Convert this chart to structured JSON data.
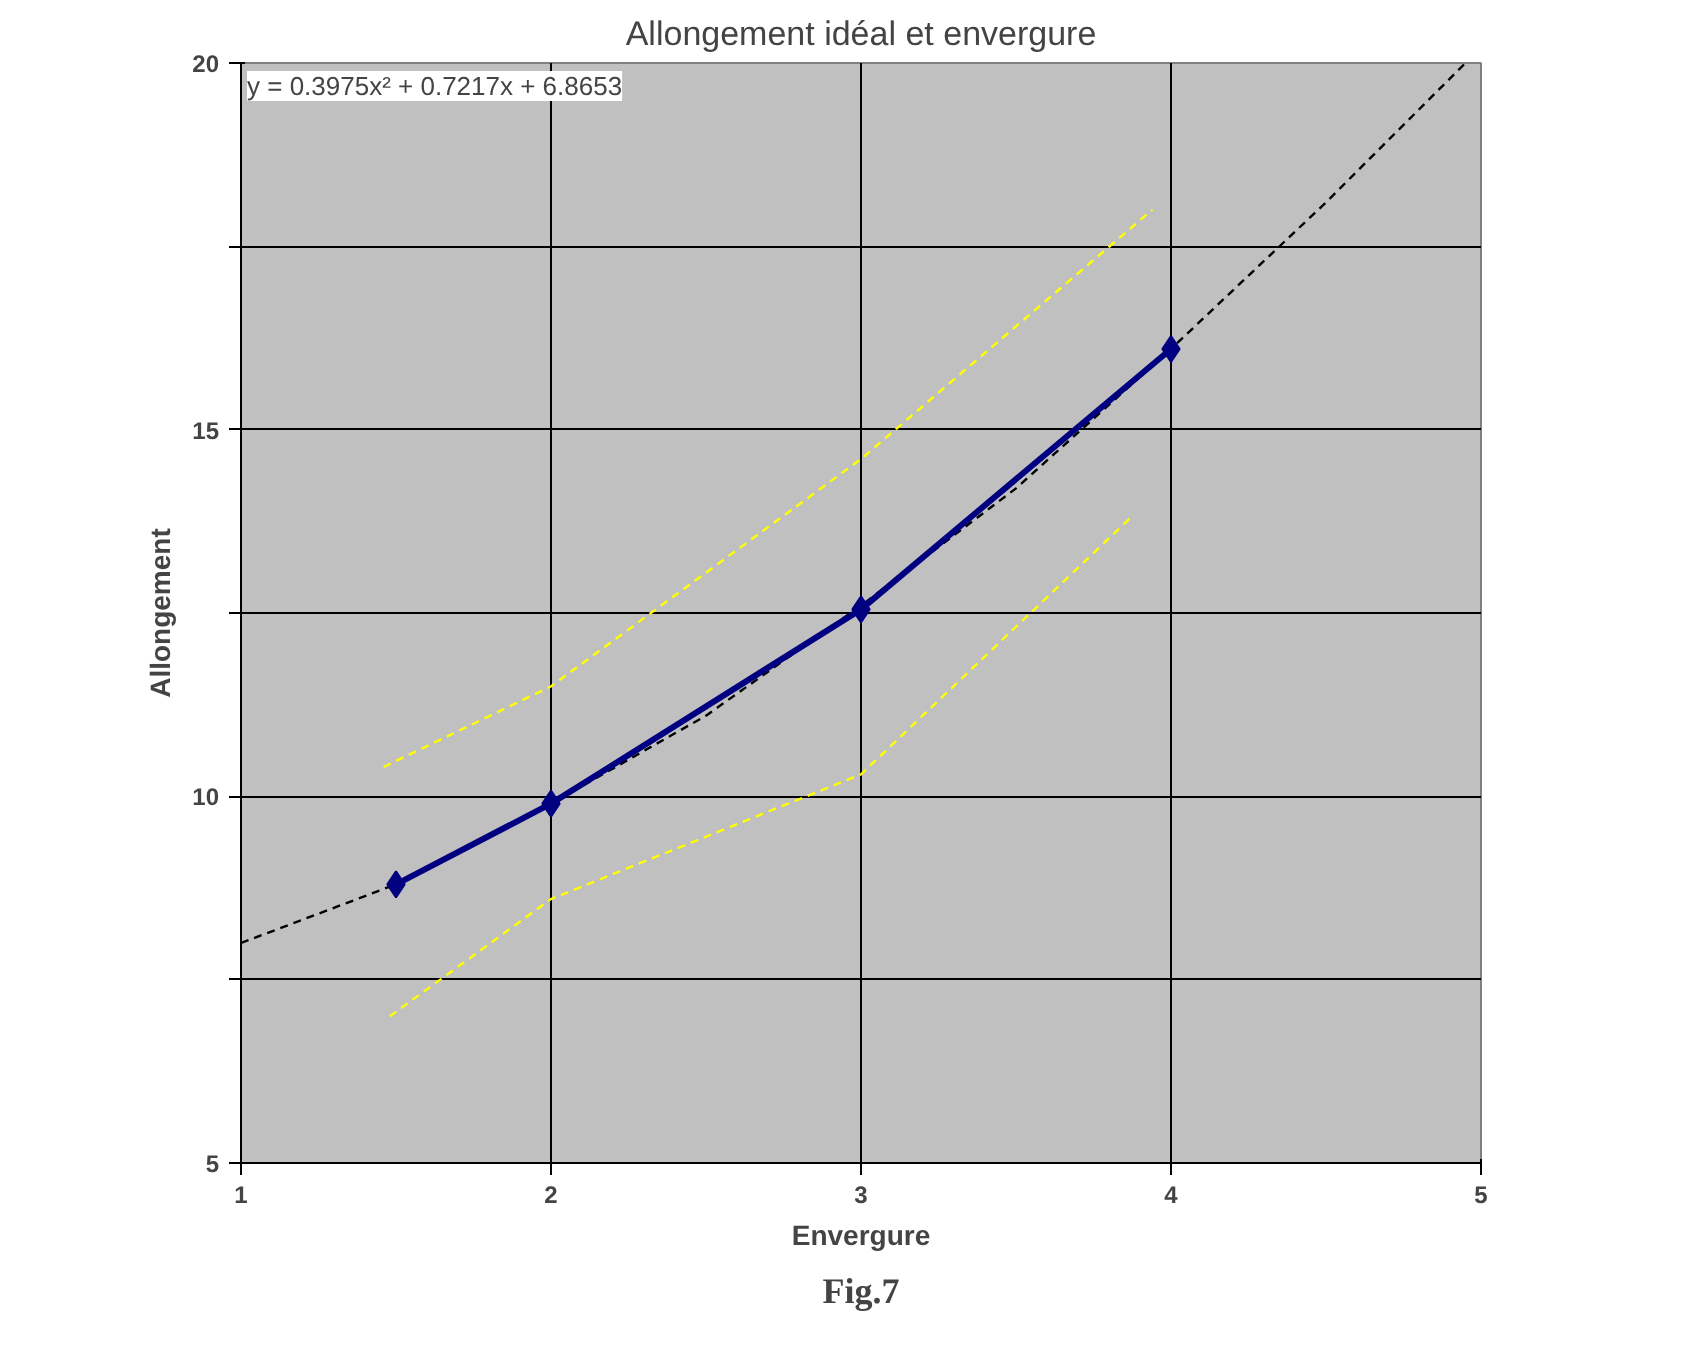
{
  "chart_data": {
    "type": "line",
    "title": "Allongement idéal et envergure",
    "xlabel": "Envergure",
    "ylabel": "Allongement",
    "xlim": [
      1,
      5
    ],
    "xticks": [
      1,
      2,
      3,
      4,
      5
    ],
    "ylim": [
      5,
      20
    ],
    "yticks": [
      5,
      {
        "value": 7.5,
        "label": null
      },
      10,
      {
        "value": 12.5,
        "label": null
      },
      15,
      {
        "value": 17.5,
        "label": null
      },
      20
    ],
    "grid": true,
    "series": [
      {
        "color": "#000000",
        "line_style": "dashed",
        "marker": "none",
        "x": [
          1,
          1.25,
          1.5,
          2,
          2.5,
          3,
          3.5,
          4,
          4.5,
          4.95
        ],
        "values": [
          8.0,
          8.4,
          8.8,
          9.9,
          11.1,
          12.6,
          14.2,
          16.1,
          18.1,
          20.0
        ]
      },
      {
        "color": "#ffff00",
        "line_style": "dashed",
        "marker": "none",
        "x": [
          1.46,
          2,
          3,
          3.94
        ],
        "values": [
          10.4,
          11.5,
          14.6,
          18.0
        ]
      },
      {
        "color": "#ffff00",
        "line_style": "dashed",
        "marker": "none",
        "x": [
          1.48,
          2,
          3,
          3.87
        ],
        "values": [
          7.0,
          8.6,
          10.3,
          13.8
        ]
      },
      {
        "color": "#000080",
        "line_style": "solid",
        "marker": "diamond",
        "x": [
          1.5,
          2,
          3,
          4
        ],
        "values": [
          8.8,
          9.9,
          12.55,
          16.1
        ]
      }
    ],
    "annotations": [
      "y = 0.3975x² + 0.7217x + 6.8653",
      "Fig.7"
    ]
  }
}
